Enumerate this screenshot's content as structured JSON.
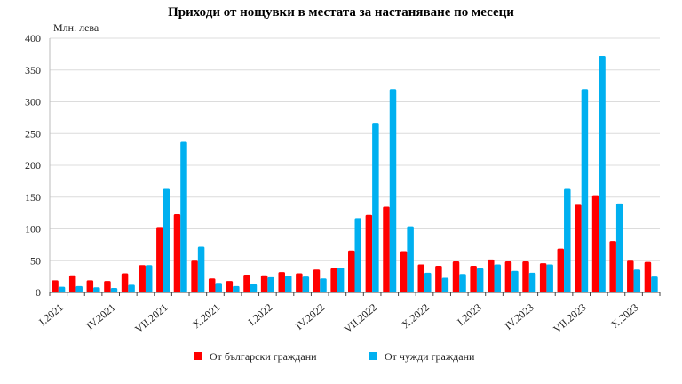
{
  "chart_data": {
    "type": "bar",
    "title": "Приходи от нощувки в местата за настаняване по месеци",
    "ylabel": "Млн. лева",
    "xlabel": "",
    "ylim": [
      0,
      400
    ],
    "yticks": [
      0,
      50,
      100,
      150,
      200,
      250,
      300,
      350,
      400
    ],
    "grid": true,
    "legend_position": "bottom",
    "categories": [
      "I.2021",
      "II.2021",
      "III.2021",
      "IV.2021",
      "V.2021",
      "VI.2021",
      "VII.2021",
      "VIII.2021",
      "IX.2021",
      "X.2021",
      "XI.2021",
      "XII.2021",
      "I.2022",
      "II.2022",
      "III.2022",
      "IV.2022",
      "V.2022",
      "VI.2022",
      "VII.2022",
      "VIII.2022",
      "IX.2022",
      "X.2022",
      "XI.2022",
      "XII.2022",
      "I.2023",
      "II.2023",
      "III.2023",
      "IV.2023",
      "V.2023",
      "VI.2023",
      "VII.2023",
      "VIII.2023",
      "IX.2023",
      "X.2023",
      "XI.2023"
    ],
    "shown_tick_labels": [
      "I.2021",
      "IV.2021",
      "VII.2021",
      "X.2021",
      "I.2022",
      "IV.2022",
      "VII.2022",
      "X.2022",
      "I.2023",
      "IV.2023",
      "VII.2023",
      "X.2023"
    ],
    "series": [
      {
        "name": "От български граждани",
        "color": "#ff0000",
        "values": [
          19,
          27,
          19,
          18,
          30,
          43,
          103,
          123,
          50,
          22,
          18,
          28,
          27,
          32,
          30,
          36,
          38,
          66,
          122,
          135,
          65,
          44,
          42,
          49,
          42,
          52,
          49,
          49,
          46,
          69,
          138,
          153,
          81,
          50,
          48
        ]
      },
      {
        "name": "От чужди граждани",
        "color": "#00b0f0",
        "values": [
          9,
          10,
          8,
          7,
          12,
          43,
          163,
          237,
          72,
          15,
          10,
          13,
          24,
          26,
          25,
          22,
          39,
          117,
          267,
          320,
          104,
          31,
          23,
          29,
          38,
          44,
          34,
          31,
          44,
          163,
          320,
          372,
          140,
          36,
          25
        ]
      }
    ]
  }
}
